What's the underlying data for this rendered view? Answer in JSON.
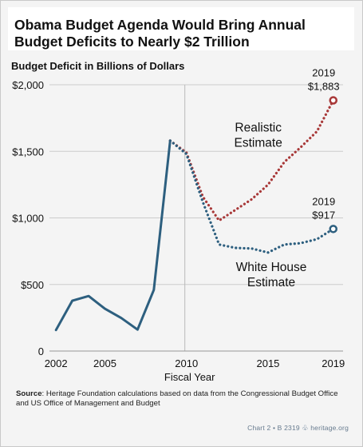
{
  "header": {
    "title_line1": "Obama Budget Agenda Would Bring Annual",
    "title_line2": "Budget Deficits to Nearly $2 Trillion"
  },
  "colors": {
    "history_line": "#2d5f7f",
    "white_house": "#2d5f7f",
    "realistic": "#a83838",
    "grid": "#cccccc",
    "background": "#f4f4f4"
  },
  "chart_data": {
    "type": "line",
    "title": "Obama Budget Agenda Would Bring Annual Budget Deficits to Nearly $2 Trillion",
    "subtitle": "Budget Deficit in Billions of Dollars",
    "xlabel": "Fiscal Year",
    "ylabel": "",
    "xlim": [
      2001.6,
      2019.6
    ],
    "ylim": [
      0,
      2000
    ],
    "xticks": [
      2002,
      2005,
      2010,
      2015,
      2019
    ],
    "yticks": [
      0,
      500,
      1000,
      1500,
      2000
    ],
    "ytick_labels": [
      "0",
      "$500",
      "$1,000",
      "$1,500",
      "$2,000"
    ],
    "grid": "horizontal",
    "vertical_divider_x": 2009.9,
    "series": [
      {
        "key": "history",
        "style": "solid",
        "x": [
          2002,
          2003,
          2004,
          2005,
          2006,
          2007,
          2008,
          2009
        ],
        "y": [
          158,
          378,
          413,
          318,
          248,
          161,
          459,
          1580
        ]
      },
      {
        "key": "realistic",
        "name": "Realistic Estimate",
        "name_line1": "Realistic",
        "name_line2": "Estimate",
        "style": "dotted",
        "x": [
          2009,
          2010,
          2011,
          2012,
          2013,
          2014,
          2015,
          2016,
          2017,
          2018,
          2019
        ],
        "y": [
          1580,
          1490,
          1160,
          980,
          1060,
          1140,
          1250,
          1420,
          1530,
          1650,
          1883
        ]
      },
      {
        "key": "white_house",
        "name": "White House Estimate",
        "name_line1": "White House",
        "name_line2": "Estimate",
        "style": "dotted",
        "x": [
          2009,
          2010,
          2011,
          2012,
          2013,
          2014,
          2015,
          2016,
          2017,
          2018,
          2019
        ],
        "y": [
          1580,
          1480,
          1120,
          800,
          775,
          770,
          740,
          800,
          810,
          840,
          917
        ]
      }
    ],
    "annotations": [
      {
        "series": "realistic",
        "x": 2019,
        "y": 1883,
        "line1": "2019",
        "line2": "$1,883"
      },
      {
        "series": "white_house",
        "x": 2019,
        "y": 917,
        "line1": "2019",
        "line2": "$917"
      }
    ]
  },
  "source": {
    "label": "Source",
    "text": ": Heritage Foundation calculations based on data from the Congressional Budget Office and US Office of Management and Budget"
  },
  "footer": {
    "chart_id": "Chart 2 • B 2319",
    "site": "heritage.org"
  }
}
